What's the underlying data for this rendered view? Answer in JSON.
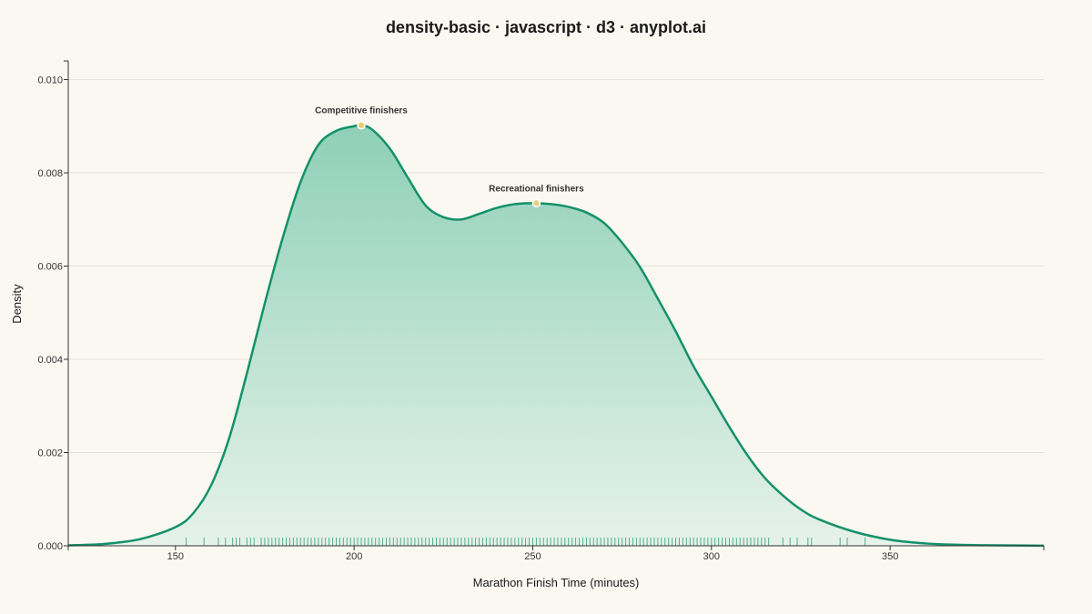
{
  "chart_data": {
    "type": "area",
    "title": "density-basic · javascript · d3 · anyplot.ai",
    "xlabel": "Marathon Finish Time (minutes)",
    "ylabel": "Density",
    "xlim": [
      120,
      393
    ],
    "ylim": [
      0,
      0.0104
    ],
    "x_ticks": [
      150,
      200,
      250,
      300,
      350
    ],
    "y_ticks": [
      0.0,
      0.002,
      0.004,
      0.006,
      0.008,
      0.01
    ],
    "y_tick_labels": [
      "0.000",
      "0.002",
      "0.004",
      "0.006",
      "0.008",
      "0.010"
    ],
    "grid": "horizontal",
    "colors": {
      "line": "#14916B",
      "fill_top": "#8FD0B8",
      "fill_bottom": "#E6F2EA",
      "rug": "#14916B",
      "marker": "#E6CF7A",
      "grid": "#E5E2D8",
      "axis": "#333333",
      "background": "#FAF8F1"
    },
    "series": [
      {
        "x": [
          120,
          130,
          140,
          150,
          155,
          160,
          165,
          170,
          175,
          180,
          185,
          190,
          195,
          200,
          202,
          205,
          210,
          215,
          220,
          225,
          230,
          235,
          240,
          245,
          250,
          255,
          260,
          265,
          270,
          275,
          280,
          285,
          290,
          295,
          300,
          305,
          310,
          315,
          320,
          325,
          330,
          340,
          350,
          360,
          370,
          380,
          393
        ],
        "y": [
          1e-05,
          4e-05,
          0.00014,
          0.0004,
          0.0007,
          0.0013,
          0.0023,
          0.0037,
          0.0052,
          0.0066,
          0.0078,
          0.0086,
          0.0089,
          0.009,
          0.00902,
          0.00893,
          0.00852,
          0.0079,
          0.0073,
          0.00705,
          0.007,
          0.00712,
          0.00725,
          0.00733,
          0.00735,
          0.00733,
          0.00727,
          0.00715,
          0.00692,
          0.0065,
          0.00598,
          0.0053,
          0.0046,
          0.00385,
          0.0032,
          0.00255,
          0.00195,
          0.00145,
          0.00108,
          0.00078,
          0.00057,
          0.0003,
          0.00013,
          5e-05,
          2e-05,
          1e-05,
          2e-06
        ]
      }
    ],
    "annotations": [
      {
        "label": "Competitive finishers",
        "x": 202,
        "y": 0.00902
      },
      {
        "label": "Recreational finishers",
        "x": 251,
        "y": 0.00735
      }
    ],
    "rug": [
      153,
      158,
      162,
      164,
      166,
      167,
      168,
      170,
      171,
      172,
      174,
      175,
      176,
      177,
      178,
      179,
      180,
      181,
      182,
      183,
      184,
      185,
      186,
      187,
      188,
      189,
      190,
      191,
      192,
      193,
      194,
      195,
      196,
      197,
      198,
      199,
      200,
      201,
      202,
      203,
      204,
      205,
      206,
      207,
      208,
      209,
      210,
      211,
      212,
      213,
      214,
      215,
      216,
      217,
      218,
      219,
      220,
      221,
      222,
      223,
      224,
      225,
      226,
      227,
      228,
      229,
      230,
      231,
      232,
      233,
      234,
      235,
      236,
      237,
      238,
      239,
      240,
      241,
      242,
      243,
      244,
      245,
      246,
      247,
      248,
      249,
      250,
      251,
      252,
      253,
      254,
      255,
      256,
      257,
      258,
      259,
      260,
      261,
      262,
      263,
      264,
      265,
      266,
      267,
      268,
      269,
      270,
      271,
      272,
      273,
      274,
      275,
      276,
      277,
      278,
      279,
      280,
      281,
      282,
      283,
      284,
      285,
      286,
      287,
      288,
      289,
      290,
      291,
      292,
      293,
      294,
      295,
      296,
      297,
      298,
      299,
      300,
      301,
      302,
      303,
      304,
      305,
      306,
      307,
      308,
      309,
      310,
      311,
      312,
      313,
      314,
      315,
      316,
      320,
      322,
      324,
      327,
      328,
      336,
      338,
      343
    ]
  }
}
